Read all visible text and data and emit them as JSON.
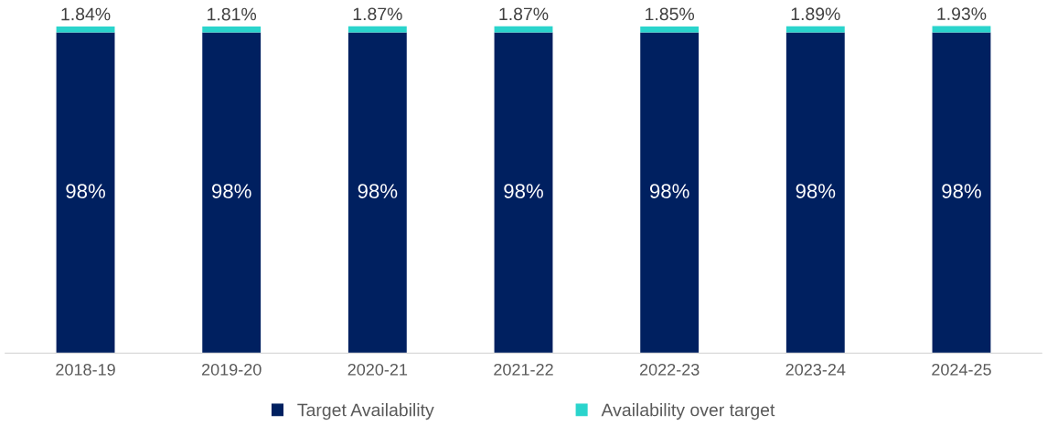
{
  "chart_data": {
    "type": "bar",
    "stacked": true,
    "legend": "bottom",
    "grid": false,
    "categories": [
      "2018-19",
      "2019-20",
      "2020-21",
      "2021-22",
      "2022-23",
      "2023-24",
      "2024-25"
    ],
    "series": [
      {
        "name": "Target Availability",
        "color": "#002060",
        "values": [
          98,
          98,
          98,
          98,
          98,
          98,
          98
        ],
        "value_labels": [
          "98%",
          "98%",
          "98%",
          "98%",
          "98%",
          "98%",
          "98%"
        ]
      },
      {
        "name": "Availability over target",
        "color": "#2ad4cc",
        "values": [
          1.84,
          1.81,
          1.87,
          1.87,
          1.85,
          1.89,
          1.93
        ],
        "value_labels": [
          "1.84%",
          "1.81%",
          "1.87%",
          "1.87%",
          "1.85%",
          "1.89%",
          "1.93%"
        ]
      }
    ]
  }
}
